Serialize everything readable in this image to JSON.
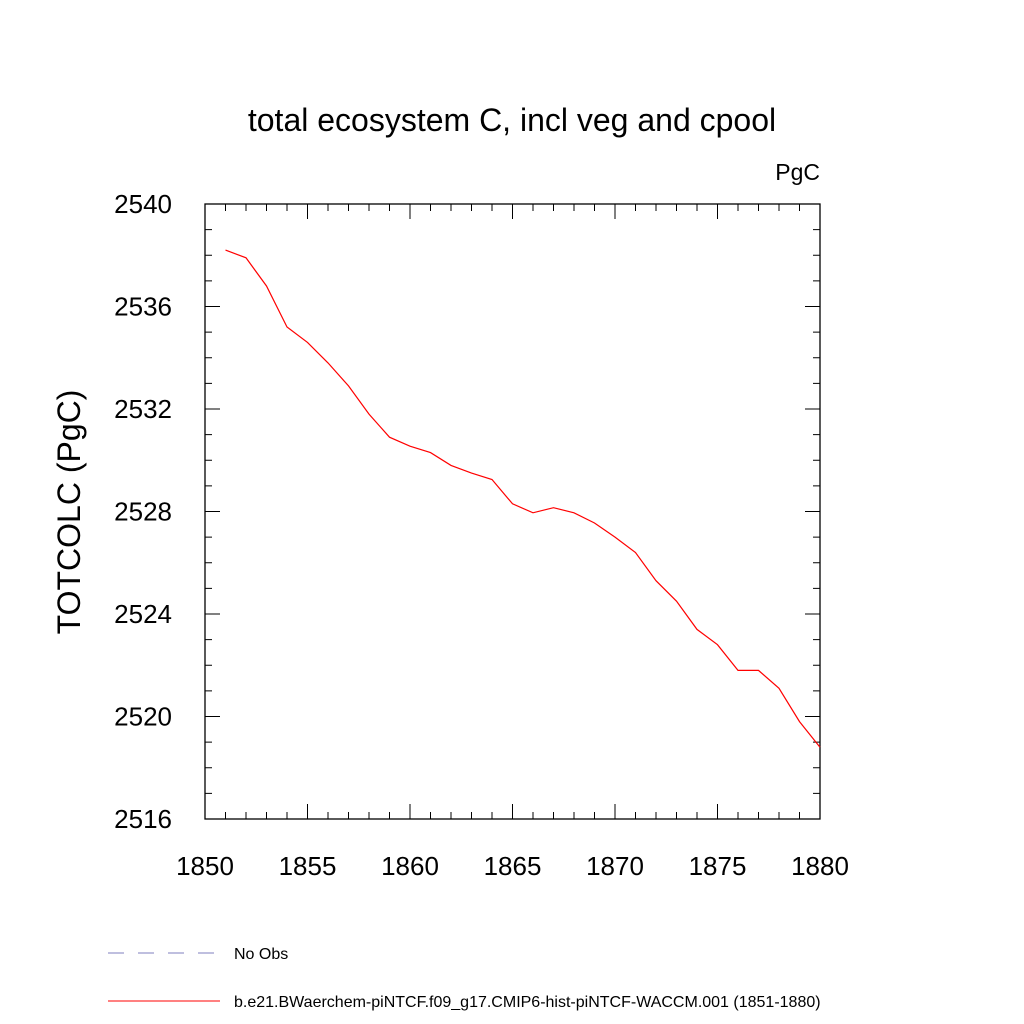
{
  "chart_data": {
    "type": "line",
    "title": "total ecosystem C, incl veg and cpool",
    "units": "PgC",
    "xlabel": "",
    "ylabel": "TOTCOLC  (PgC)",
    "xlim": [
      1850,
      1880
    ],
    "ylim": [
      2516,
      2540
    ],
    "xticks": [
      1850,
      1855,
      1860,
      1865,
      1870,
      1875,
      1880
    ],
    "yticks": [
      2516,
      2520,
      2524,
      2528,
      2532,
      2536,
      2540
    ],
    "grid": false,
    "legend_position": "bottom-left",
    "series": [
      {
        "name": "b.e21.BWaerchem-piNTCF.f09_g17.CMIP6-hist-piNTCF-WACCM.001 (1851-1880)",
        "color": "#ff0000",
        "style": "solid",
        "x": [
          1851,
          1852,
          1853,
          1854,
          1855,
          1856,
          1857,
          1858,
          1859,
          1860,
          1861,
          1862,
          1863,
          1864,
          1865,
          1866,
          1867,
          1868,
          1869,
          1870,
          1871,
          1872,
          1873,
          1874,
          1875,
          1876,
          1877,
          1878,
          1879,
          1880
        ],
        "values": [
          2538.2,
          2537.9,
          2536.8,
          2535.2,
          2534.6,
          2533.8,
          2532.9,
          2531.8,
          2530.9,
          2530.55,
          2530.3,
          2529.8,
          2529.5,
          2529.25,
          2528.3,
          2527.95,
          2528.15,
          2527.95,
          2527.55,
          2527.0,
          2526.4,
          2525.3,
          2524.5,
          2523.4,
          2522.8,
          2521.8,
          2521.8,
          2521.1,
          2519.8,
          2518.8
        ]
      }
    ],
    "legend": [
      {
        "label": "No Obs",
        "color": "#7f7fbf",
        "style": "dashed"
      },
      {
        "label": "b.e21.BWaerchem-piNTCF.f09_g17.CMIP6-hist-piNTCF-WACCM.001 (1851-1880)",
        "color": "#ff0000",
        "style": "solid"
      }
    ]
  }
}
